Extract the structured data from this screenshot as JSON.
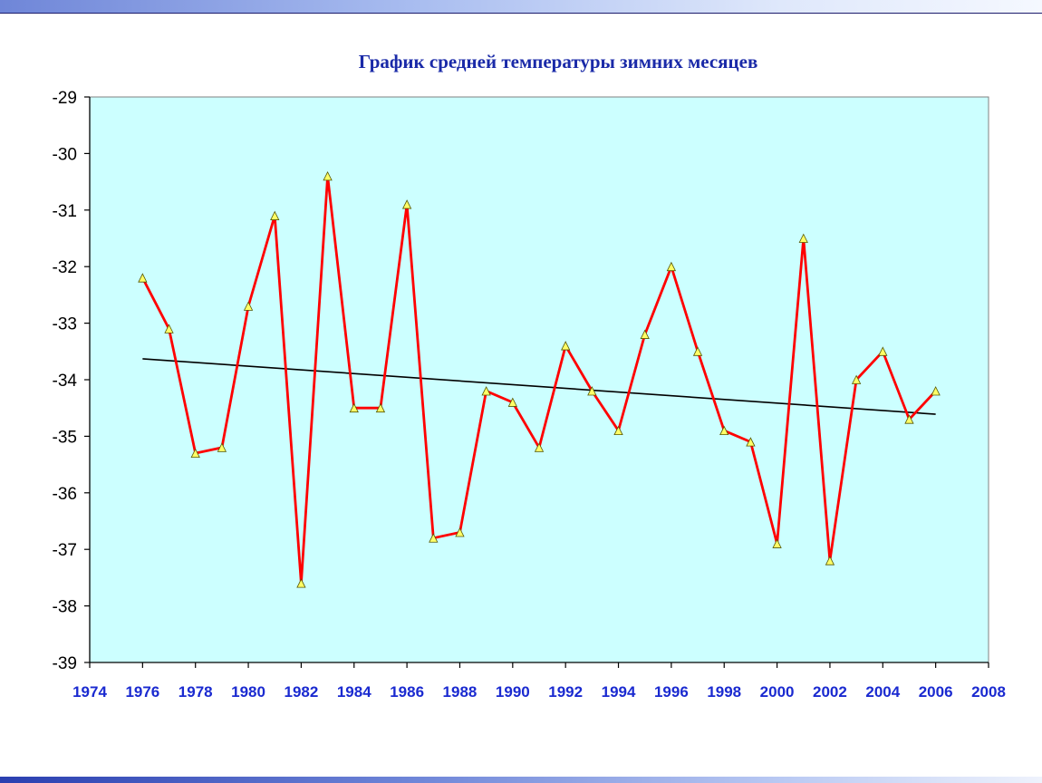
{
  "chart_data": {
    "type": "line",
    "title": "График средней температуры зимних месяцев",
    "xlabel": "",
    "ylabel": "",
    "xlim": [
      1974,
      2008
    ],
    "ylim": [
      -39,
      -29
    ],
    "grid": false,
    "plot_background": "#ccffff",
    "x_ticks": [
      "1974",
      "1976",
      "1978",
      "1980",
      "1982",
      "1984",
      "1986",
      "1988",
      "1990",
      "1992",
      "1994",
      "1996",
      "1998",
      "2000",
      "2002",
      "2004",
      "2006",
      "2008"
    ],
    "y_ticks": [
      "-29",
      "-30",
      "-31",
      "-32",
      "-33",
      "-34",
      "-35",
      "-36",
      "-37",
      "-38",
      "-39"
    ],
    "series": [
      {
        "color": "#ff0000",
        "marker": "triangle",
        "marker_color": "#ffff66",
        "x": [
          1976,
          1977,
          1978,
          1979,
          1980,
          1981,
          1982,
          1983,
          1984,
          1985,
          1986,
          1987,
          1988,
          1989,
          1990,
          1991,
          1992,
          1993,
          1994,
          1995,
          1996,
          1997,
          1998,
          1999,
          2000,
          2001,
          2002,
          2003,
          2004,
          2005,
          2006
        ],
        "values": [
          -32.2,
          -33.1,
          -35.3,
          -35.2,
          -32.7,
          -31.1,
          -37.6,
          -30.4,
          -34.5,
          -34.5,
          -30.9,
          -36.8,
          -36.7,
          -34.2,
          -34.4,
          -35.2,
          -33.4,
          -34.2,
          -34.9,
          -33.2,
          -32.0,
          -33.5,
          -34.9,
          -35.1,
          -36.9,
          -31.5,
          -37.2,
          -34.0,
          -33.5,
          -34.7,
          -34.2
        ]
      }
    ],
    "trendline": {
      "color": "#000000",
      "x": [
        1976,
        2006
      ],
      "values": [
        -33.63,
        -34.61
      ]
    }
  }
}
